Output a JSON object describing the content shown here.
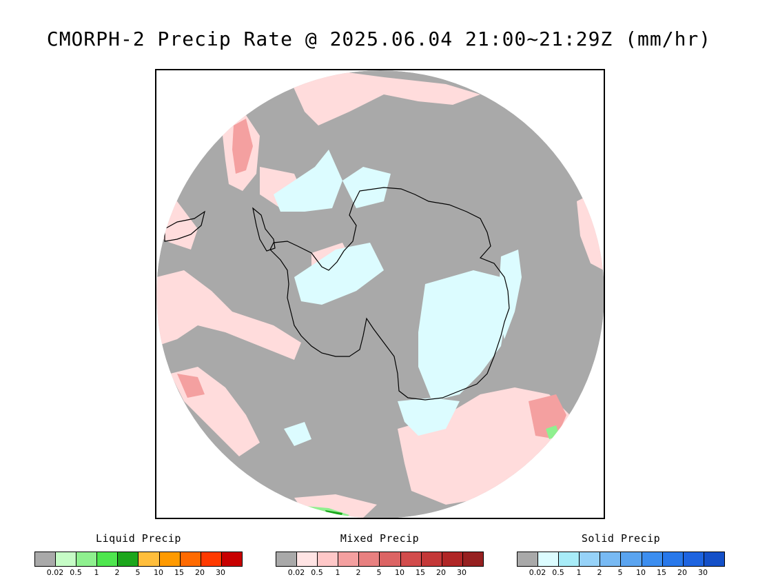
{
  "title": "CMORPH-2 Precip Rate @ 2025.06.04 21:00~21:29Z (mm/hr)",
  "map": {
    "projection": "south-polar-stereographic",
    "colors": {
      "no_precip": "#a9a9a9",
      "mixed_light": "#ffdcdc",
      "mixed_mid": "#f4a0a0",
      "solid_light": "#dcfcff",
      "liquid_light": "#8ff08f",
      "liquid_dark": "#1ca61c",
      "coastline": "#000000",
      "outside": "#ffffff"
    }
  },
  "legends": [
    {
      "title": "Liquid Precip",
      "colors": [
        "#a9a9a9",
        "#c6fcc6",
        "#8ff08f",
        "#4ee64e",
        "#1ca61c",
        "#ffbe3c",
        "#ff9a00",
        "#ff6a00",
        "#ff3a00",
        "#c80000"
      ],
      "ticks": [
        "0.02",
        "0.5",
        "1",
        "2",
        "5",
        "10",
        "15",
        "20",
        "30"
      ]
    },
    {
      "title": "Mixed Precip",
      "colors": [
        "#a9a9a9",
        "#ffe4e4",
        "#ffc8c8",
        "#f4a0a0",
        "#e88080",
        "#dc6464",
        "#d24c4c",
        "#c43838",
        "#b02626",
        "#962020"
      ],
      "ticks": [
        "0.02",
        "0.5",
        "1",
        "2",
        "5",
        "10",
        "15",
        "20",
        "30"
      ]
    },
    {
      "title": "Solid Precip",
      "colors": [
        "#a9a9a9",
        "#dcfcff",
        "#a8ecf8",
        "#96d2f8",
        "#78baf4",
        "#5aa4f0",
        "#3c8ef0",
        "#2878ea",
        "#1e64e0",
        "#1450c8"
      ],
      "ticks": [
        "0.02",
        "0.5",
        "1",
        "2",
        "5",
        "10",
        "15",
        "20",
        "30"
      ]
    }
  ]
}
